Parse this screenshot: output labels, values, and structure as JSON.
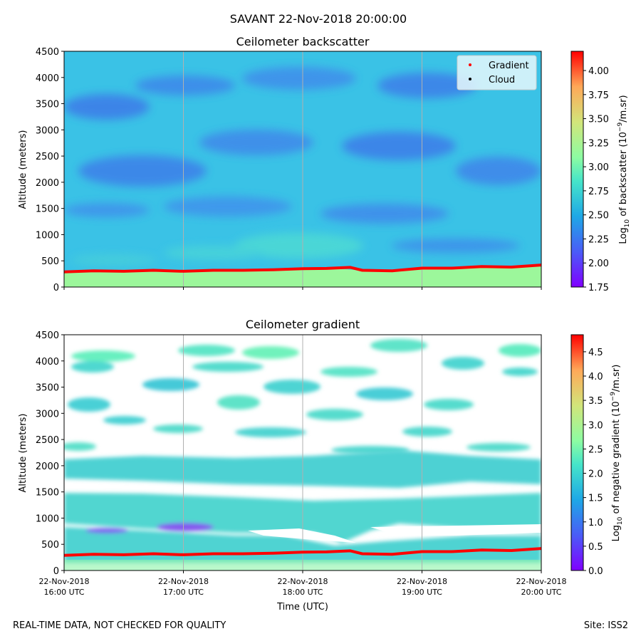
{
  "suptitle": "SAVANT 22-Nov-2018 20:00:00",
  "footer": {
    "left": "REAL-TIME DATA, NOT CHECKED FOR QUALITY",
    "right": "Site: ISS2"
  },
  "x_axis": {
    "label": "Time (UTC)",
    "ticks": [
      {
        "date": "22-Nov-2018",
        "time": "16:00 UTC"
      },
      {
        "date": "22-Nov-2018",
        "time": "17:00 UTC"
      },
      {
        "date": "22-Nov-2018",
        "time": "18:00 UTC"
      },
      {
        "date": "22-Nov-2018",
        "time": "19:00 UTC"
      },
      {
        "date": "22-Nov-2018",
        "time": "20:00 UTC"
      }
    ]
  },
  "chart_data": [
    {
      "type": "heatmap",
      "title": "Ceilometer backscatter",
      "ylabel": "Altitude (meters)",
      "xlabel": "",
      "x_hours": [
        16,
        20
      ],
      "ylim": [
        0,
        4500
      ],
      "yticks": [
        0,
        500,
        1000,
        1500,
        2000,
        2500,
        3000,
        3500,
        4000,
        4500
      ],
      "colorbar": {
        "label_prefix": "Log",
        "label_sub": "10",
        "label_main": " of backscatter (10",
        "label_sup": "−9",
        "label_end": "/m.sr)",
        "range": [
          1.75,
          4.2
        ],
        "ticks": [
          "1.75",
          "2.00",
          "2.25",
          "2.50",
          "2.75",
          "3.00",
          "3.25",
          "3.50",
          "3.75",
          "4.00"
        ],
        "tick_values": [
          1.75,
          2.0,
          2.25,
          2.5,
          2.75,
          3.0,
          3.25,
          3.5,
          3.75,
          4.0
        ]
      },
      "legend": {
        "position": "top-right",
        "entries": [
          {
            "label": "Gradient",
            "color": "#ff0000"
          },
          {
            "label": "Cloud",
            "color": "#000000"
          }
        ]
      },
      "gradient_line": {
        "name": "Gradient",
        "color": "#ff0000",
        "hours": [
          16.0,
          16.25,
          16.5,
          16.75,
          17.0,
          17.25,
          17.5,
          17.75,
          18.0,
          18.2,
          18.4,
          18.5,
          18.75,
          19.0,
          19.25,
          19.5,
          19.75,
          20.0
        ],
        "altitude_m": [
          290,
          310,
          300,
          320,
          300,
          320,
          320,
          330,
          350,
          355,
          375,
          320,
          310,
          360,
          360,
          390,
          380,
          420
        ]
      }
    },
    {
      "type": "heatmap",
      "title": "Ceilometer gradient",
      "ylabel": "Altitude (meters)",
      "xlabel": "Time (UTC)",
      "x_hours": [
        16,
        20
      ],
      "ylim": [
        0,
        4500
      ],
      "yticks": [
        0,
        500,
        1000,
        1500,
        2000,
        2500,
        3000,
        3500,
        4000,
        4500
      ],
      "colorbar": {
        "label_prefix": "Log",
        "label_sub": "10",
        "label_main": " of negative gradient (10",
        "label_sup": "−9",
        "label_end": "/m.sr)",
        "range": [
          0.0,
          4.85
        ],
        "ticks": [
          "0.0",
          "0.5",
          "1.0",
          "1.5",
          "2.0",
          "2.5",
          "3.0",
          "3.5",
          "4.0",
          "4.5"
        ],
        "tick_values": [
          0.0,
          0.5,
          1.0,
          1.5,
          2.0,
          2.5,
          3.0,
          3.5,
          4.0,
          4.5
        ]
      },
      "gradient_line": {
        "name": "Gradient",
        "color": "#ff0000",
        "hours": [
          16.0,
          16.25,
          16.5,
          16.75,
          17.0,
          17.25,
          17.5,
          17.75,
          18.0,
          18.2,
          18.4,
          18.5,
          18.75,
          19.0,
          19.25,
          19.5,
          19.75,
          20.0
        ],
        "altitude_m": [
          290,
          310,
          300,
          320,
          300,
          320,
          320,
          330,
          350,
          355,
          375,
          320,
          310,
          360,
          360,
          390,
          380,
          420
        ]
      }
    }
  ],
  "colors": {
    "bg_field": "#3fc6e6",
    "boundary_layer": "#9cf79b",
    "gradient_line": "#ff0000",
    "grid": "#b0b0b0"
  }
}
